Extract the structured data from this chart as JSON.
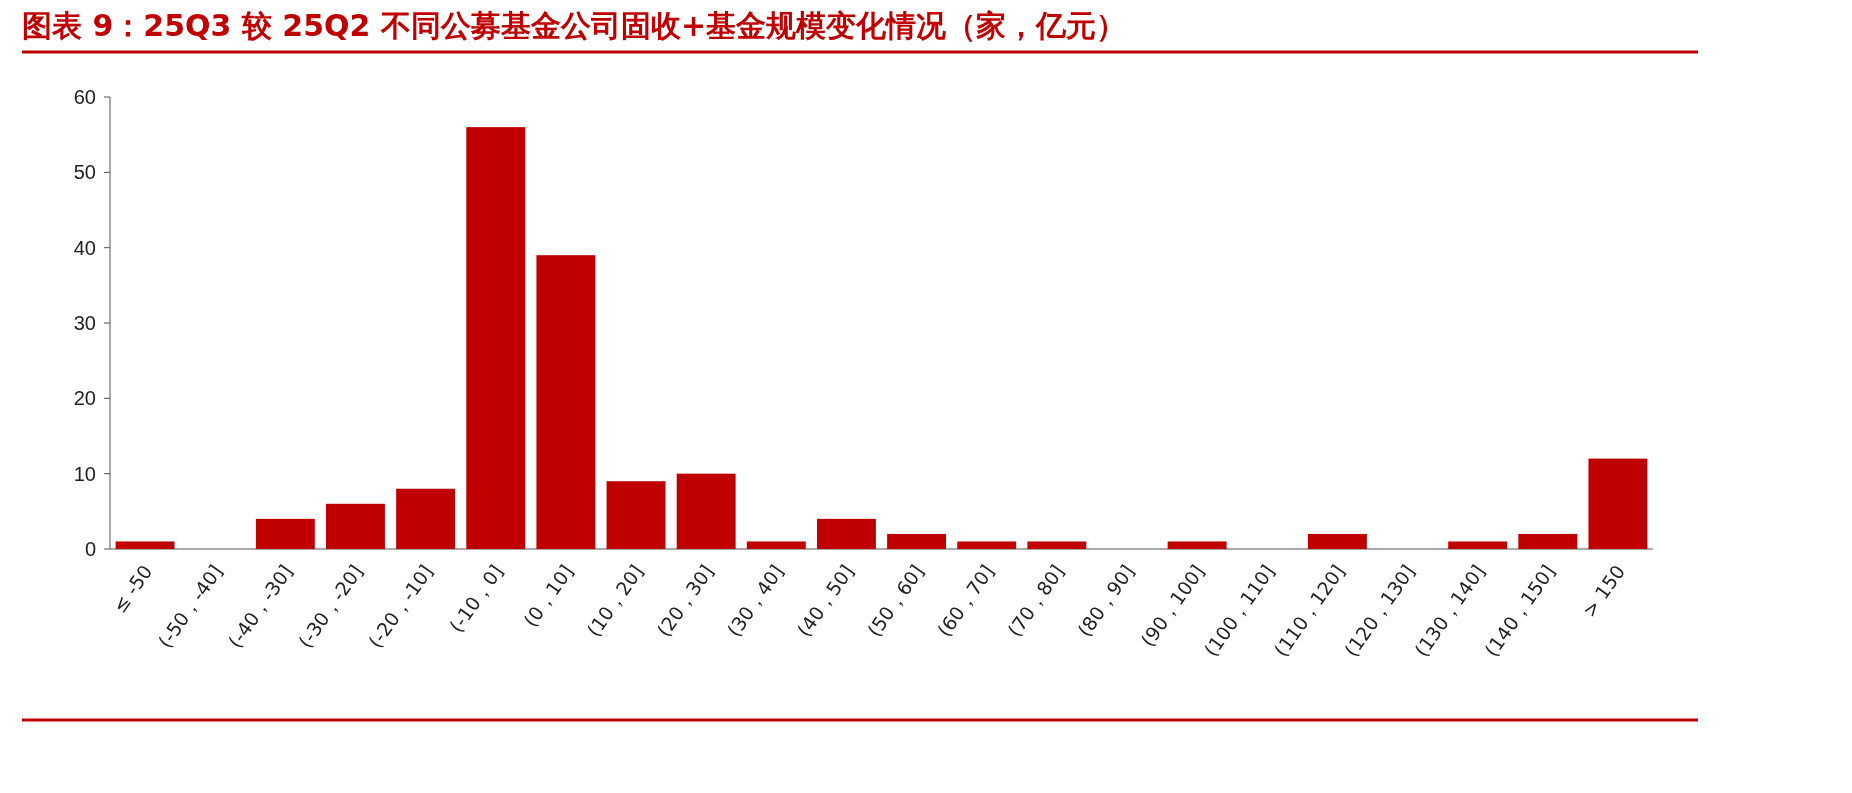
{
  "chart_data": {
    "type": "bar",
    "title": "图表 9：25Q3 较 25Q2 不同公募基金公司固收+基金规模变化情况（家，亿元）",
    "categories": [
      "≤ -50",
      "(-50，-40]",
      "(-40，-30]",
      "(-30，-20]",
      "(-20，-10]",
      "(-10，0]",
      "(0，10]",
      "(10，20]",
      "(20，30]",
      "(30，40]",
      "(40，50]",
      "(50，60]",
      "(60，70]",
      "(70，80]",
      "(80，90]",
      "(90，100]",
      "(100，110]",
      "(110，120]",
      "(120，130]",
      "(130，140]",
      "(140，150]",
      "> 150"
    ],
    "values": [
      1,
      0,
      4,
      6,
      8,
      56,
      39,
      9,
      10,
      1,
      4,
      2,
      1,
      1,
      0,
      1,
      0,
      2,
      0,
      1,
      2,
      12
    ],
    "color": "#c00000",
    "ylim": [
      0,
      60
    ],
    "yticks": [
      0,
      10,
      20,
      30,
      40,
      50,
      60
    ]
  }
}
